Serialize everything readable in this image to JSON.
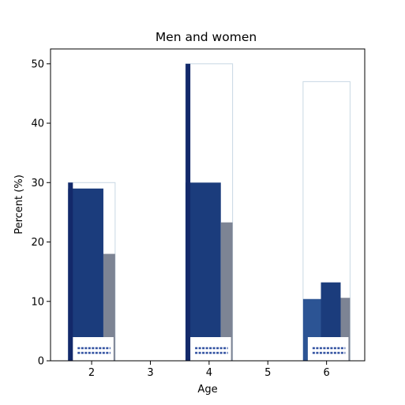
{
  "chart_data": {
    "type": "bar",
    "title": "Men and women",
    "xlabel": "Age",
    "ylabel": "Percent (%)",
    "xlim": [
      1.3,
      6.65
    ],
    "ylim": [
      0,
      52.5
    ],
    "x_ticks": [
      2,
      3,
      4,
      5,
      6
    ],
    "y_ticks": [
      0,
      10,
      20,
      30,
      40,
      50
    ],
    "grid": false,
    "groups": [
      {
        "x": 2,
        "total": 30,
        "values": [
          29,
          18
        ]
      },
      {
        "x": 4,
        "total": 50,
        "values": [
          30,
          23.3
        ]
      },
      {
        "x": 6,
        "total": 47,
        "values": [
          10.4,
          13.2,
          10.6
        ]
      }
    ],
    "colors": {
      "outline": "#c8d8e4",
      "dark_blue": "#1b3c7c",
      "mid_blue": "#2c5494",
      "gray": "#7d8494",
      "edge_blue": "#13296a",
      "label_strip": "#3050a0"
    }
  }
}
